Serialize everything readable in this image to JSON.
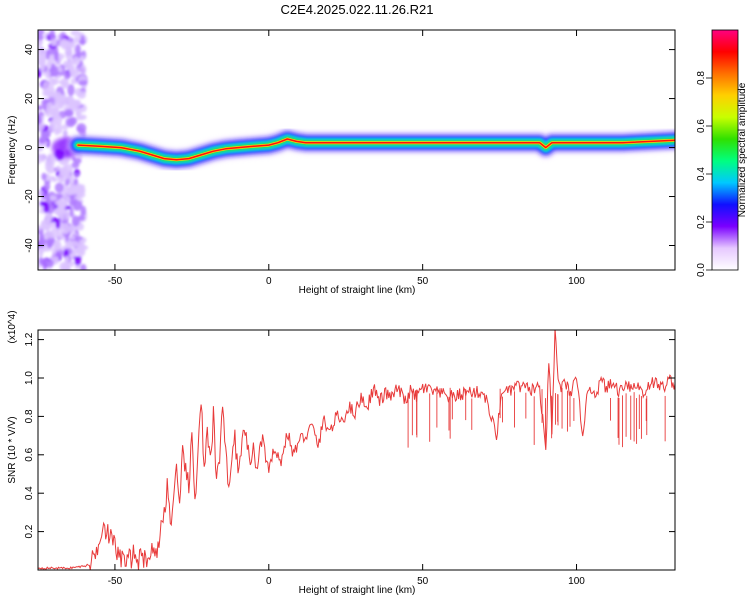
{
  "title": "C2E4.2025.022.11.26.R21",
  "colors": {
    "line": "#e83a3a",
    "axis": "#000000",
    "background": "#ffffff"
  },
  "chart_data": [
    {
      "type": "heatmap",
      "xlabel": "Height of straight line (km)",
      "ylabel": "Frequency (Hz)",
      "xlim": [
        -75,
        132
      ],
      "ylim": [
        -50,
        48
      ],
      "xticks": [
        -50,
        0,
        50,
        100
      ],
      "yticks": [
        -40,
        -20,
        0,
        20,
        40
      ],
      "colorbar": {
        "label": "Normalized spectral amplitude",
        "range": [
          0,
          1
        ],
        "ticks": [
          "0.0",
          "0.2",
          "0.4",
          "0.6",
          "0.8"
        ],
        "colormap": [
          "#ffffff",
          "#e6c8ff",
          "#7a00ff",
          "#1010ff",
          "#00c8ff",
          "#00ff80",
          "#30e000",
          "#c8ff00",
          "#ffd000",
          "#ff7000",
          "#ff0000",
          "#ff0080"
        ]
      },
      "ridge": {
        "x": [
          -62,
          -55,
          -48,
          -42,
          -38,
          -34,
          -30,
          -26,
          -22,
          -18,
          -14,
          -10,
          -5,
          0,
          3,
          6,
          9,
          12,
          20,
          40,
          60,
          80,
          88,
          90,
          92,
          100,
          115,
          132
        ],
        "y": [
          1,
          0.5,
          0,
          -1.5,
          -3,
          -4.5,
          -5,
          -4.5,
          -3,
          -1.5,
          -0.5,
          0,
          0.5,
          1,
          2,
          3.5,
          2.5,
          2,
          2,
          2,
          2,
          2,
          2,
          0,
          2,
          2,
          2,
          3
        ]
      },
      "noise_region_x": [
        -75,
        -60
      ]
    },
    {
      "type": "line",
      "xlabel": "Height of straight line (km)",
      "ylabel": "SNR (10 * V/V)",
      "multiplier": "(x10^4)",
      "xlim": [
        -75,
        132
      ],
      "ylim": [
        0,
        1.25
      ],
      "xticks": [
        -50,
        0,
        50,
        100
      ],
      "yticks": [
        0.2,
        0.4,
        0.6,
        0.8,
        1.0,
        1.2
      ],
      "series": [
        {
          "x": [
            -75,
            -70,
            -65,
            -60,
            -58,
            -56,
            -54,
            -52,
            -50,
            -48,
            -46,
            -44,
            -42,
            -40,
            -38,
            -36,
            -34,
            -33,
            -32,
            -31,
            -30,
            -29,
            -28,
            -27,
            -26,
            -25,
            -24,
            -23,
            -22,
            -21,
            -20,
            -19,
            -18,
            -17,
            -16,
            -15,
            -14,
            -13,
            -12,
            -11,
            -10,
            -9,
            -8,
            -7,
            -6,
            -5,
            -4,
            -3,
            -2,
            -1,
            0,
            2,
            4,
            6,
            8,
            10,
            12,
            14,
            16,
            18,
            20,
            22,
            24,
            26,
            28,
            30,
            32,
            34,
            36,
            38,
            40,
            42,
            44,
            46,
            48,
            50,
            55,
            60,
            65,
            70,
            74,
            76,
            78,
            80,
            85,
            88,
            90,
            91,
            92,
            93,
            94,
            95,
            96,
            98,
            100,
            102,
            104,
            106,
            108,
            110,
            112,
            114,
            116,
            118,
            120,
            122,
            124,
            126,
            128,
            130,
            132
          ],
          "y": [
            0.01,
            0.01,
            0.01,
            0.02,
            0.03,
            0.1,
            0.25,
            0.18,
            0.12,
            0.06,
            0.04,
            0.08,
            0.05,
            0.07,
            0.09,
            0.12,
            0.3,
            0.45,
            0.25,
            0.35,
            0.5,
            0.3,
            0.6,
            0.55,
            0.4,
            0.7,
            0.35,
            0.65,
            0.9,
            0.5,
            0.7,
            0.55,
            0.8,
            0.45,
            0.6,
            0.9,
            0.6,
            0.45,
            0.55,
            0.7,
            0.5,
            0.6,
            0.75,
            0.65,
            0.55,
            0.65,
            0.5,
            0.62,
            0.7,
            0.58,
            0.5,
            0.65,
            0.55,
            0.72,
            0.6,
            0.68,
            0.7,
            0.75,
            0.65,
            0.78,
            0.72,
            0.8,
            0.78,
            0.85,
            0.82,
            0.9,
            0.85,
            0.95,
            0.88,
            0.92,
            0.9,
            0.95,
            0.88,
            0.93,
            0.9,
            0.95,
            0.92,
            0.9,
            0.93,
            0.92,
            0.7,
            0.95,
            0.92,
            0.96,
            0.94,
            0.95,
            0.6,
            1.1,
            0.7,
            1.25,
            1.0,
            0.95,
            0.97,
            0.93,
            0.98,
            0.72,
            0.96,
            0.92,
            0.98,
            0.95,
            0.97,
            0.93,
            0.98,
            0.95,
            0.96,
            0.92,
            0.98,
            0.97,
            0.95,
            0.99,
            0.97
          ]
        }
      ]
    }
  ]
}
